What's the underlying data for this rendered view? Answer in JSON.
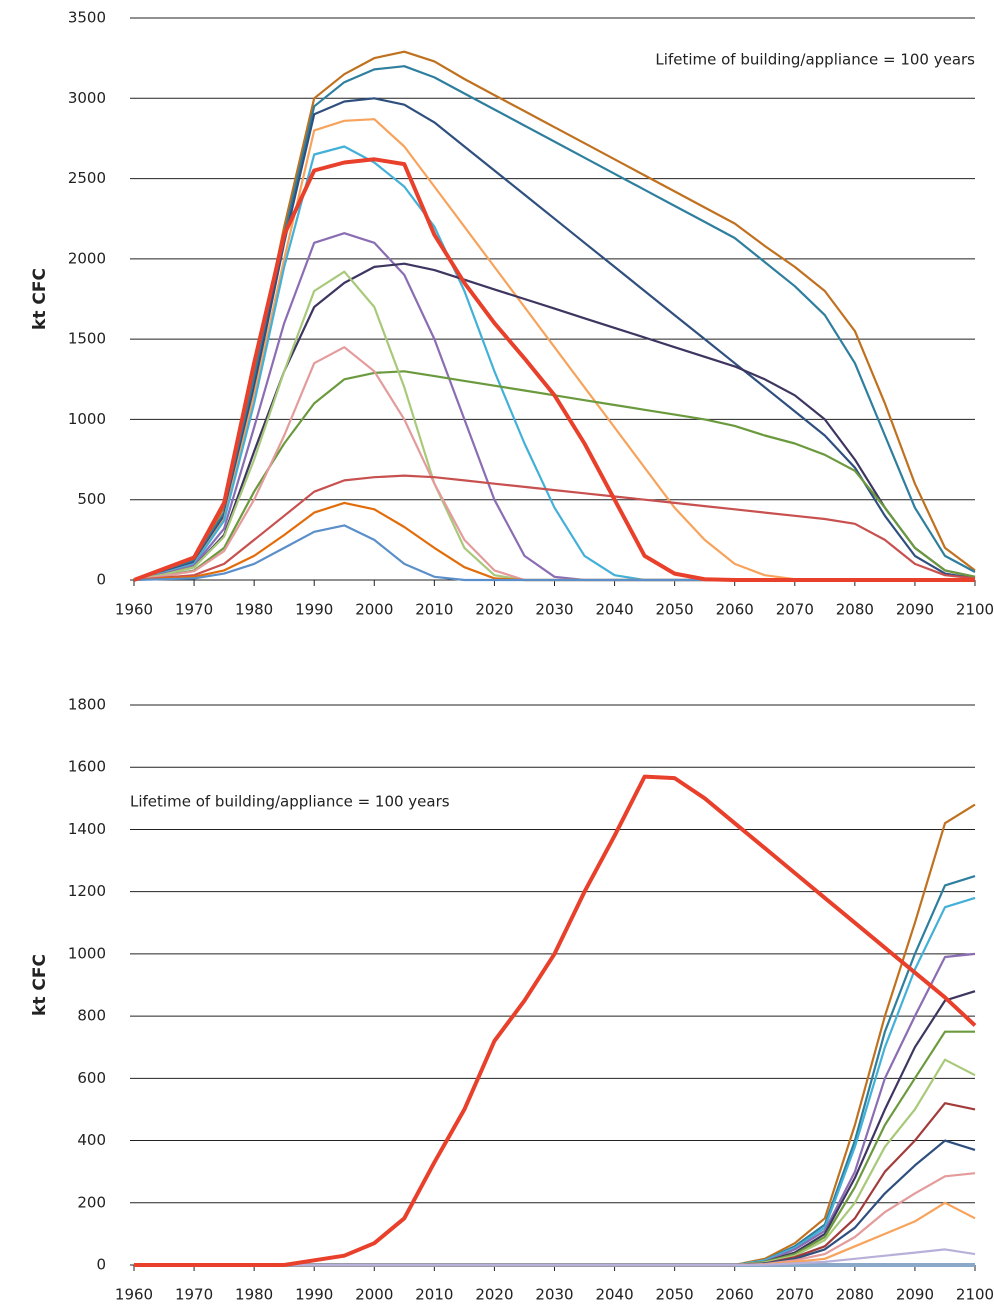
{
  "chart_data": [
    {
      "type": "line",
      "y_label": "kt CFC",
      "annotation": "Lifetime of building/appliance = 100 years",
      "x": [
        1960,
        1965,
        1970,
        1975,
        1980,
        1985,
        1990,
        1995,
        2000,
        2005,
        2010,
        2015,
        2020,
        2025,
        2030,
        2035,
        2040,
        2045,
        2050,
        2055,
        2060,
        2065,
        2070,
        2075,
        2080,
        2085,
        2090,
        2095,
        2100
      ],
      "xlim": [
        1960,
        2100
      ],
      "xticks": [
        1960,
        1970,
        1980,
        1990,
        2000,
        2010,
        2020,
        2030,
        2040,
        2050,
        2060,
        2070,
        2080,
        2090,
        2100
      ],
      "ylim": [
        0,
        3500
      ],
      "yticks": [
        0,
        500,
        1000,
        1500,
        2000,
        2500,
        3000,
        3500
      ],
      "grid": true,
      "series": [
        {
          "color": "#c0711f",
          "values": [
            0,
            60,
            130,
            450,
            1300,
            2200,
            3000,
            3150,
            3250,
            3290,
            3230,
            3120,
            3020,
            2920,
            2820,
            2720,
            2620,
            2520,
            2420,
            2320,
            2220,
            2080,
            1950,
            1800,
            1550,
            1100,
            600,
            200,
            60
          ]
        },
        {
          "color": "#2e7f9e",
          "values": [
            0,
            55,
            120,
            420,
            1250,
            2150,
            2950,
            3100,
            3180,
            3200,
            3130,
            3030,
            2930,
            2830,
            2730,
            2630,
            2530,
            2430,
            2330,
            2230,
            2130,
            1980,
            1830,
            1650,
            1350,
            900,
            450,
            150,
            50
          ]
        },
        {
          "color": "#2f4f7f",
          "values": [
            0,
            50,
            110,
            400,
            1200,
            2100,
            2900,
            2980,
            3000,
            2960,
            2850,
            2700,
            2550,
            2400,
            2250,
            2100,
            1950,
            1800,
            1650,
            1500,
            1350,
            1200,
            1050,
            900,
            700,
            400,
            150,
            40,
            10
          ]
        },
        {
          "color": "#f7a35c",
          "values": [
            0,
            45,
            100,
            380,
            1150,
            2000,
            2800,
            2860,
            2870,
            2700,
            2450,
            2200,
            1950,
            1700,
            1450,
            1200,
            950,
            700,
            450,
            250,
            100,
            30,
            5,
            0,
            0,
            0,
            0,
            0,
            0
          ]
        },
        {
          "color": "#43b0d8",
          "values": [
            0,
            45,
            100,
            370,
            1100,
            1950,
            2650,
            2700,
            2600,
            2450,
            2200,
            1800,
            1300,
            850,
            450,
            150,
            30,
            0,
            0,
            0,
            0,
            0,
            0,
            0,
            0,
            0,
            0,
            0,
            0
          ]
        },
        {
          "color": "#8a6db3",
          "values": [
            0,
            40,
            90,
            320,
            950,
            1600,
            2100,
            2160,
            2100,
            1900,
            1500,
            1000,
            500,
            150,
            20,
            0,
            0,
            0,
            0,
            0,
            0,
            0,
            0,
            0,
            0,
            0,
            0,
            0,
            0
          ]
        },
        {
          "color": "#3e3560",
          "values": [
            0,
            35,
            80,
            280,
            800,
            1300,
            1700,
            1850,
            1950,
            1970,
            1930,
            1870,
            1810,
            1750,
            1690,
            1630,
            1570,
            1510,
            1450,
            1390,
            1330,
            1250,
            1150,
            1000,
            750,
            450,
            200,
            60,
            20
          ]
        },
        {
          "color": "#6b9a3e",
          "values": [
            0,
            25,
            60,
            200,
            550,
            850,
            1100,
            1250,
            1290,
            1300,
            1270,
            1240,
            1210,
            1180,
            1150,
            1120,
            1090,
            1060,
            1030,
            1000,
            960,
            900,
            850,
            780,
            680,
            450,
            200,
            60,
            20
          ]
        },
        {
          "color": "#a9c97a",
          "values": [
            0,
            35,
            80,
            270,
            750,
            1300,
            1800,
            1920,
            1700,
            1200,
            600,
            200,
            30,
            0,
            0,
            0,
            0,
            0,
            0,
            0,
            0,
            0,
            0,
            0,
            0,
            0,
            0,
            0,
            0
          ]
        },
        {
          "color": "#e39b9b",
          "values": [
            0,
            25,
            55,
            180,
            500,
            900,
            1350,
            1450,
            1300,
            1000,
            600,
            250,
            60,
            0,
            0,
            0,
            0,
            0,
            0,
            0,
            0,
            0,
            0,
            0,
            0,
            0,
            0,
            0,
            0
          ]
        },
        {
          "color": "#c8504f",
          "values": [
            0,
            15,
            30,
            100,
            250,
            400,
            550,
            620,
            640,
            650,
            640,
            620,
            600,
            580,
            560,
            540,
            520,
            500,
            480,
            460,
            440,
            420,
            400,
            380,
            350,
            250,
            100,
            30,
            10
          ]
        },
        {
          "color": "#e36c0a",
          "values": [
            0,
            10,
            20,
            60,
            150,
            280,
            420,
            480,
            440,
            330,
            200,
            80,
            10,
            0,
            0,
            0,
            0,
            0,
            0,
            0,
            0,
            0,
            0,
            0,
            0,
            0,
            0,
            0,
            0
          ]
        },
        {
          "color": "#5b8fc9",
          "values": [
            0,
            5,
            10,
            40,
            100,
            200,
            300,
            340,
            250,
            100,
            20,
            0,
            0,
            0,
            0,
            0,
            0,
            0,
            0,
            0,
            0,
            0,
            0,
            0,
            0,
            0,
            0,
            0,
            0
          ]
        },
        {
          "color": "#e8402a",
          "linewidth": 4,
          "values": [
            0,
            70,
            140,
            480,
            1350,
            2150,
            2550,
            2600,
            2620,
            2590,
            2150,
            1850,
            1600,
            1380,
            1150,
            850,
            500,
            150,
            40,
            5,
            0,
            0,
            0,
            0,
            0,
            0,
            0,
            0,
            0
          ]
        }
      ]
    },
    {
      "type": "line",
      "y_label": "kt CFC",
      "annotation": "Lifetime of building/appliance = 100 years",
      "x": [
        1960,
        1965,
        1970,
        1975,
        1980,
        1985,
        1990,
        1995,
        2000,
        2005,
        2010,
        2015,
        2020,
        2025,
        2030,
        2035,
        2040,
        2045,
        2050,
        2055,
        2060,
        2065,
        2070,
        2075,
        2080,
        2085,
        2090,
        2095,
        2100
      ],
      "xlim": [
        1960,
        2100
      ],
      "xticks": [
        1960,
        1970,
        1980,
        1990,
        2000,
        2010,
        2020,
        2030,
        2040,
        2050,
        2060,
        2070,
        2080,
        2090,
        2100
      ],
      "ylim": [
        0,
        1800
      ],
      "yticks": [
        0,
        200,
        400,
        600,
        800,
        1000,
        1200,
        1400,
        1600,
        1800
      ],
      "grid": true,
      "series": [
        {
          "color": "#8aa8c8",
          "linewidth": 4,
          "values": [
            0,
            0,
            0,
            0,
            0,
            0,
            0,
            0,
            0,
            0,
            0,
            0,
            0,
            0,
            0,
            0,
            0,
            0,
            0,
            0,
            0,
            0,
            0,
            0,
            0,
            0,
            0,
            0,
            0
          ]
        },
        {
          "color": "#c0711f",
          "values": [
            0,
            0,
            0,
            0,
            0,
            0,
            0,
            0,
            0,
            0,
            0,
            0,
            0,
            0,
            0,
            0,
            0,
            0,
            0,
            0,
            0,
            20,
            70,
            150,
            450,
            800,
            1100,
            1420,
            1480
          ]
        },
        {
          "color": "#2e7f9e",
          "values": [
            0,
            0,
            0,
            0,
            0,
            0,
            0,
            0,
            0,
            0,
            0,
            0,
            0,
            0,
            0,
            0,
            0,
            0,
            0,
            0,
            0,
            15,
            60,
            130,
            400,
            750,
            1000,
            1220,
            1250
          ]
        },
        {
          "color": "#43b0d8",
          "values": [
            0,
            0,
            0,
            0,
            0,
            0,
            0,
            0,
            0,
            0,
            0,
            0,
            0,
            0,
            0,
            0,
            0,
            0,
            0,
            0,
            0,
            15,
            55,
            120,
            380,
            700,
            950,
            1150,
            1180
          ]
        },
        {
          "color": "#8a6db3",
          "values": [
            0,
            0,
            0,
            0,
            0,
            0,
            0,
            0,
            0,
            0,
            0,
            0,
            0,
            0,
            0,
            0,
            0,
            0,
            0,
            0,
            0,
            10,
            50,
            110,
            300,
            600,
            800,
            990,
            1000
          ]
        },
        {
          "color": "#3e3560",
          "values": [
            0,
            0,
            0,
            0,
            0,
            0,
            0,
            0,
            0,
            0,
            0,
            0,
            0,
            0,
            0,
            0,
            0,
            0,
            0,
            0,
            0,
            10,
            40,
            100,
            280,
            500,
            700,
            850,
            880
          ]
        },
        {
          "color": "#6b9a3e",
          "values": [
            0,
            0,
            0,
            0,
            0,
            0,
            0,
            0,
            0,
            0,
            0,
            0,
            0,
            0,
            0,
            0,
            0,
            0,
            0,
            0,
            0,
            10,
            35,
            90,
            250,
            450,
            600,
            750,
            750
          ]
        },
        {
          "color": "#a9c97a",
          "values": [
            0,
            0,
            0,
            0,
            0,
            0,
            0,
            0,
            0,
            0,
            0,
            0,
            0,
            0,
            0,
            0,
            0,
            0,
            0,
            0,
            0,
            8,
            30,
            80,
            200,
            380,
            500,
            660,
            610
          ]
        },
        {
          "color": "#a33b3b",
          "values": [
            0,
            0,
            0,
            0,
            0,
            0,
            0,
            0,
            0,
            0,
            0,
            0,
            0,
            0,
            0,
            0,
            0,
            0,
            0,
            0,
            0,
            5,
            25,
            60,
            150,
            300,
            400,
            520,
            500
          ]
        },
        {
          "color": "#2f4f7f",
          "values": [
            0,
            0,
            0,
            0,
            0,
            0,
            0,
            0,
            0,
            0,
            0,
            0,
            0,
            0,
            0,
            0,
            0,
            0,
            0,
            0,
            0,
            5,
            20,
            50,
            120,
            230,
            320,
            400,
            370
          ]
        },
        {
          "color": "#e39b9b",
          "values": [
            0,
            0,
            0,
            0,
            0,
            0,
            0,
            0,
            0,
            0,
            0,
            0,
            0,
            0,
            0,
            0,
            0,
            0,
            0,
            0,
            0,
            3,
            15,
            35,
            90,
            170,
            230,
            285,
            295
          ]
        },
        {
          "color": "#f7a35c",
          "values": [
            0,
            0,
            0,
            0,
            0,
            0,
            0,
            0,
            0,
            0,
            0,
            0,
            0,
            0,
            0,
            0,
            0,
            0,
            0,
            0,
            0,
            2,
            10,
            20,
            60,
            100,
            140,
            200,
            150
          ]
        },
        {
          "color": "#b8b0d8",
          "values": [
            0,
            0,
            0,
            0,
            0,
            0,
            0,
            0,
            0,
            0,
            0,
            0,
            0,
            0,
            0,
            0,
            0,
            0,
            0,
            0,
            0,
            1,
            5,
            10,
            20,
            30,
            40,
            50,
            35
          ]
        },
        {
          "color": "#e8402a",
          "linewidth": 4,
          "values": [
            0,
            0,
            0,
            0,
            0,
            0,
            15,
            30,
            70,
            150,
            330,
            500,
            720,
            850,
            1000,
            1200,
            1380,
            1570,
            1565,
            1500,
            1420,
            1340,
            1260,
            1180,
            1100,
            1020,
            940,
            860,
            770
          ]
        }
      ]
    }
  ]
}
